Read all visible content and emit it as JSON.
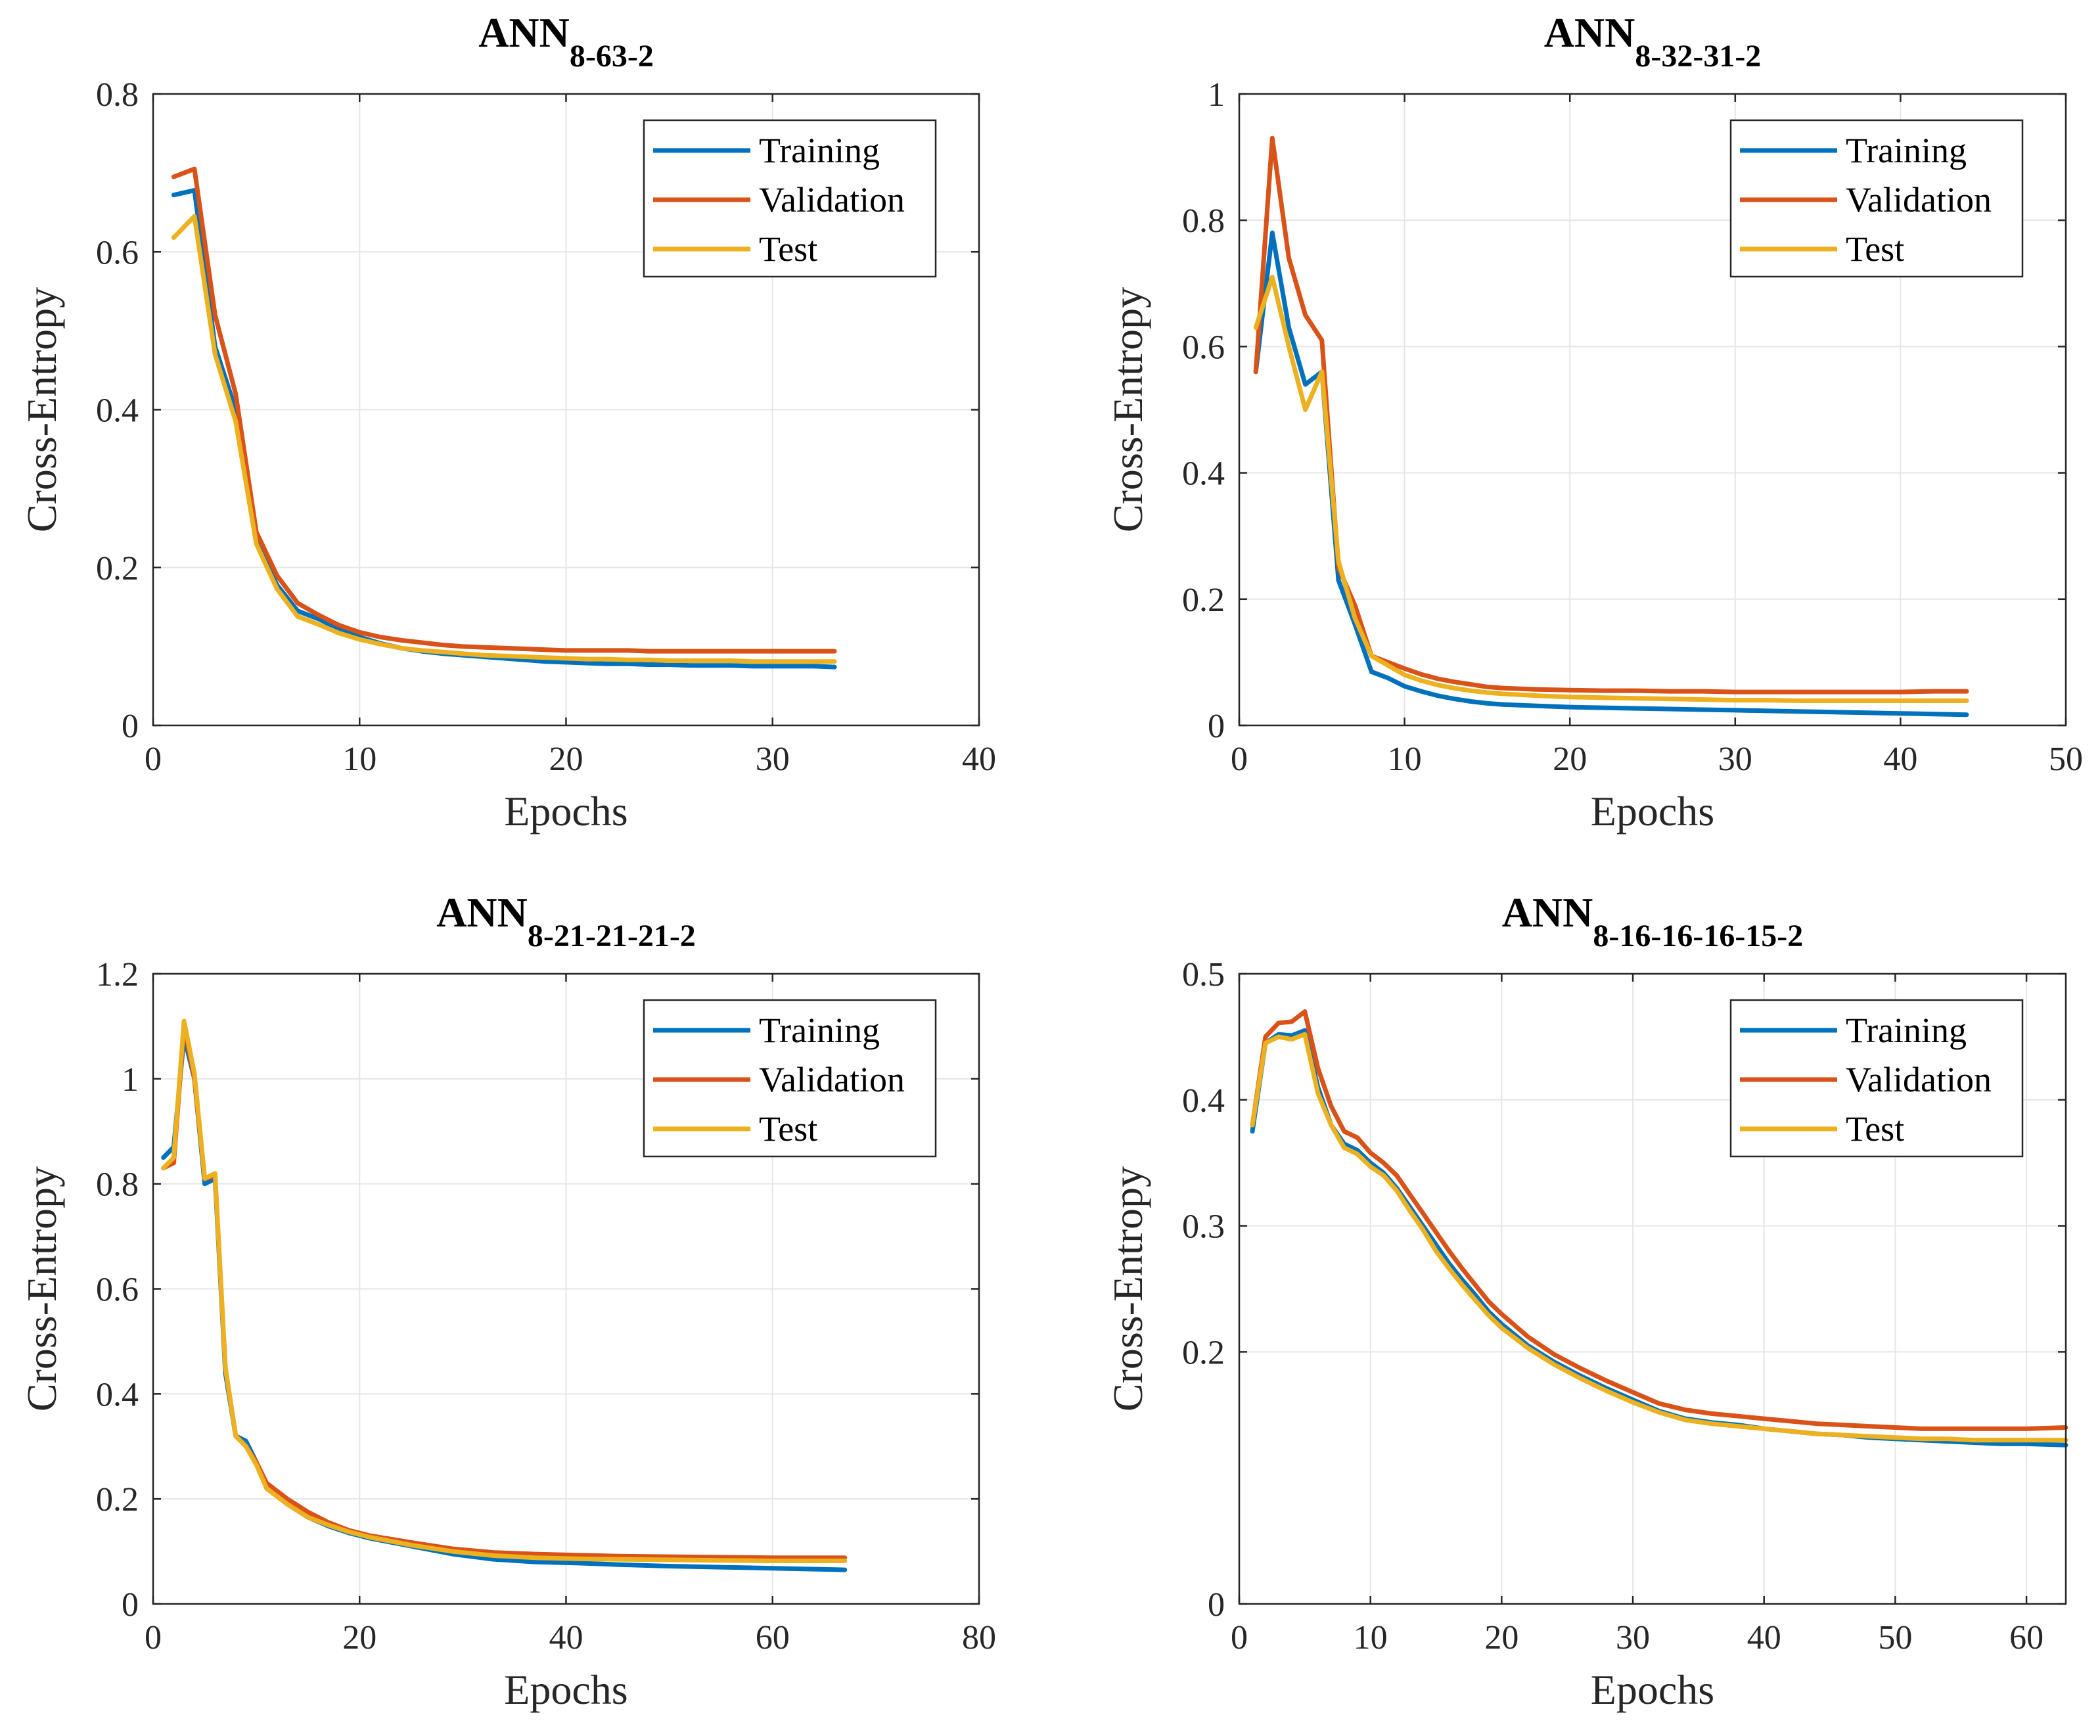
{
  "figure": {
    "description_label": "Cross-entropy training curves"
  },
  "colors": {
    "training": "#0072BD",
    "validation": "#D95319",
    "test": "#EDB120",
    "grid": "#e6e6e6",
    "axis": "#262626"
  },
  "chart_data": [
    {
      "type": "line",
      "title": "ANN",
      "title_sub": "8-63-2",
      "xlabel": "Epochs",
      "ylabel": "Cross-Entropy",
      "xlim": [
        0,
        40
      ],
      "ylim": [
        0,
        0.8
      ],
      "xticks": [
        0,
        10,
        20,
        30,
        40
      ],
      "xtick_labels": [
        "0",
        "10",
        "20",
        "30",
        "40"
      ],
      "yticks": [
        0,
        0.2,
        0.4,
        0.6,
        0.8
      ],
      "ytick_labels": [
        "0",
        "0.2",
        "0.4",
        "0.6",
        "0.8"
      ],
      "grid": true,
      "legend_position": "top-right",
      "series": [
        {
          "name": "Training",
          "color": "#0072BD",
          "x": [
            1,
            2,
            3,
            4,
            5,
            6,
            7,
            8,
            9,
            10,
            11,
            12,
            13,
            14,
            15,
            16,
            17,
            18,
            19,
            20,
            21,
            22,
            23,
            24,
            25,
            26,
            27,
            28,
            29,
            30,
            31,
            32,
            33
          ],
          "y": [
            0.672,
            0.678,
            0.48,
            0.4,
            0.235,
            0.178,
            0.145,
            0.135,
            0.122,
            0.112,
            0.104,
            0.098,
            0.094,
            0.091,
            0.089,
            0.087,
            0.085,
            0.083,
            0.081,
            0.08,
            0.079,
            0.078,
            0.078,
            0.077,
            0.077,
            0.076,
            0.076,
            0.076,
            0.075,
            0.075,
            0.075,
            0.075,
            0.074
          ]
        },
        {
          "name": "Validation",
          "color": "#D95319",
          "x": [
            1,
            2,
            3,
            4,
            5,
            6,
            7,
            8,
            9,
            10,
            11,
            12,
            13,
            14,
            15,
            16,
            17,
            18,
            19,
            20,
            21,
            22,
            23,
            24,
            25,
            26,
            27,
            28,
            29,
            30,
            31,
            32,
            33
          ],
          "y": [
            0.695,
            0.705,
            0.52,
            0.42,
            0.245,
            0.19,
            0.155,
            0.14,
            0.127,
            0.118,
            0.112,
            0.108,
            0.105,
            0.102,
            0.1,
            0.099,
            0.098,
            0.097,
            0.096,
            0.095,
            0.095,
            0.095,
            0.095,
            0.094,
            0.094,
            0.094,
            0.094,
            0.094,
            0.094,
            0.094,
            0.094,
            0.094,
            0.094
          ]
        },
        {
          "name": "Test",
          "color": "#EDB120",
          "x": [
            1,
            2,
            3,
            4,
            5,
            6,
            7,
            8,
            9,
            10,
            11,
            12,
            13,
            14,
            15,
            16,
            17,
            18,
            19,
            20,
            21,
            22,
            23,
            24,
            25,
            26,
            27,
            28,
            29,
            30,
            31,
            32,
            33
          ],
          "y": [
            0.618,
            0.645,
            0.47,
            0.385,
            0.23,
            0.173,
            0.138,
            0.128,
            0.117,
            0.109,
            0.103,
            0.098,
            0.095,
            0.093,
            0.091,
            0.089,
            0.088,
            0.087,
            0.086,
            0.085,
            0.084,
            0.084,
            0.083,
            0.083,
            0.082,
            0.082,
            0.082,
            0.082,
            0.081,
            0.081,
            0.081,
            0.081,
            0.081
          ]
        }
      ]
    },
    {
      "type": "line",
      "title": "ANN",
      "title_sub": "8-32-31-2",
      "xlabel": "Epochs",
      "ylabel": "Cross-Entropy",
      "xlim": [
        0,
        50
      ],
      "ylim": [
        0,
        1
      ],
      "xticks": [
        0,
        10,
        20,
        30,
        40,
        50
      ],
      "xtick_labels": [
        "0",
        "10",
        "20",
        "30",
        "40",
        "50"
      ],
      "yticks": [
        0,
        0.2,
        0.4,
        0.6,
        0.8,
        1
      ],
      "ytick_labels": [
        "0",
        "0.2",
        "0.4",
        "0.6",
        "0.8",
        "1"
      ],
      "grid": true,
      "legend_position": "top-right",
      "series": [
        {
          "name": "Training",
          "color": "#0072BD",
          "x": [
            1,
            2,
            3,
            4,
            5,
            6,
            7,
            8,
            9,
            10,
            11,
            12,
            13,
            14,
            15,
            16,
            18,
            20,
            22,
            24,
            26,
            28,
            30,
            32,
            34,
            36,
            38,
            40,
            42,
            44
          ],
          "y": [
            0.56,
            0.78,
            0.63,
            0.54,
            0.56,
            0.23,
            0.16,
            0.085,
            0.075,
            0.062,
            0.054,
            0.047,
            0.042,
            0.038,
            0.035,
            0.033,
            0.031,
            0.029,
            0.028,
            0.027,
            0.026,
            0.025,
            0.024,
            0.023,
            0.022,
            0.021,
            0.02,
            0.019,
            0.018,
            0.017
          ]
        },
        {
          "name": "Validation",
          "color": "#D95319",
          "x": [
            1,
            2,
            3,
            4,
            5,
            6,
            7,
            8,
            9,
            10,
            11,
            12,
            13,
            14,
            15,
            16,
            18,
            20,
            22,
            24,
            26,
            28,
            30,
            32,
            34,
            36,
            38,
            40,
            42,
            44
          ],
          "y": [
            0.56,
            0.93,
            0.74,
            0.65,
            0.61,
            0.25,
            0.19,
            0.11,
            0.1,
            0.09,
            0.081,
            0.074,
            0.069,
            0.065,
            0.061,
            0.059,
            0.057,
            0.056,
            0.055,
            0.055,
            0.054,
            0.054,
            0.053,
            0.053,
            0.053,
            0.053,
            0.053,
            0.053,
            0.054,
            0.054
          ]
        },
        {
          "name": "Test",
          "color": "#EDB120",
          "x": [
            1,
            2,
            3,
            4,
            5,
            6,
            7,
            8,
            9,
            10,
            11,
            12,
            13,
            14,
            15,
            16,
            18,
            20,
            22,
            24,
            26,
            28,
            30,
            32,
            34,
            36,
            38,
            40,
            42,
            44
          ],
          "y": [
            0.63,
            0.71,
            0.6,
            0.5,
            0.56,
            0.26,
            0.17,
            0.11,
            0.095,
            0.08,
            0.071,
            0.064,
            0.059,
            0.055,
            0.052,
            0.05,
            0.047,
            0.045,
            0.044,
            0.043,
            0.042,
            0.041,
            0.04,
            0.04,
            0.039,
            0.039,
            0.039,
            0.039,
            0.039,
            0.039
          ]
        }
      ]
    },
    {
      "type": "line",
      "title": "ANN",
      "title_sub": "8-21-21-21-2",
      "xlabel": "Epochs",
      "ylabel": "Cross-Entropy",
      "xlim": [
        0,
        80
      ],
      "ylim": [
        0,
        1.2
      ],
      "xticks": [
        0,
        20,
        40,
        60,
        80
      ],
      "xtick_labels": [
        "0",
        "20",
        "40",
        "60",
        "80"
      ],
      "yticks": [
        0,
        0.2,
        0.4,
        0.6,
        0.8,
        1,
        1.2
      ],
      "ytick_labels": [
        "0",
        "0.2",
        "0.4",
        "0.6",
        "0.8",
        "1",
        "1.2"
      ],
      "grid": true,
      "legend_position": "top-right",
      "series": [
        {
          "name": "Training",
          "color": "#0072BD",
          "x": [
            1,
            2,
            3,
            4,
            5,
            6,
            7,
            8,
            9,
            10,
            11,
            13,
            15,
            17,
            19,
            21,
            25,
            29,
            33,
            37,
            41,
            45,
            50,
            55,
            60,
            67
          ],
          "y": [
            0.85,
            0.87,
            1.08,
            1.0,
            0.8,
            0.81,
            0.44,
            0.32,
            0.31,
            0.27,
            0.22,
            0.19,
            0.165,
            0.148,
            0.135,
            0.125,
            0.11,
            0.095,
            0.085,
            0.08,
            0.078,
            0.075,
            0.072,
            0.07,
            0.068,
            0.065
          ]
        },
        {
          "name": "Validation",
          "color": "#D95319",
          "x": [
            1,
            2,
            3,
            4,
            5,
            6,
            7,
            8,
            9,
            10,
            11,
            13,
            15,
            17,
            19,
            21,
            25,
            29,
            33,
            37,
            41,
            45,
            50,
            55,
            60,
            67
          ],
          "y": [
            0.83,
            0.84,
            1.1,
            1.0,
            0.81,
            0.815,
            0.45,
            0.32,
            0.3,
            0.27,
            0.23,
            0.2,
            0.175,
            0.155,
            0.14,
            0.13,
            0.117,
            0.105,
            0.098,
            0.095,
            0.093,
            0.091,
            0.09,
            0.089,
            0.088,
            0.088
          ]
        },
        {
          "name": "Test",
          "color": "#EDB120",
          "x": [
            1,
            2,
            3,
            4,
            5,
            6,
            7,
            8,
            9,
            10,
            11,
            13,
            15,
            17,
            19,
            21,
            25,
            29,
            33,
            37,
            41,
            45,
            50,
            55,
            60,
            67
          ],
          "y": [
            0.83,
            0.85,
            1.11,
            1.01,
            0.81,
            0.82,
            0.45,
            0.32,
            0.3,
            0.265,
            0.22,
            0.19,
            0.165,
            0.15,
            0.137,
            0.127,
            0.112,
            0.1,
            0.092,
            0.088,
            0.086,
            0.085,
            0.084,
            0.083,
            0.082,
            0.082
          ]
        }
      ]
    },
    {
      "type": "line",
      "title": "ANN",
      "title_sub": "8-16-16-16-15-2",
      "xlabel": "Epochs",
      "ylabel": "Cross-Entropy",
      "xlim": [
        0,
        63
      ],
      "ylim": [
        0,
        0.5
      ],
      "xticks": [
        0,
        10,
        20,
        30,
        40,
        50,
        60
      ],
      "xtick_labels": [
        "0",
        "10",
        "20",
        "30",
        "40",
        "50",
        "60"
      ],
      "yticks": [
        0,
        0.2,
        0.3,
        0.4,
        0.5
      ],
      "ytick_labels": [
        "0",
        "0.2",
        "0.3",
        "0.4",
        "0.5"
      ],
      "grid": true,
      "legend_position": "top-right",
      "series": [
        {
          "name": "Training",
          "color": "#0072BD",
          "x": [
            1,
            2,
            3,
            4,
            5,
            6,
            7,
            8,
            9,
            10,
            11,
            12,
            13,
            14,
            15,
            16,
            17,
            18,
            19,
            20,
            22,
            24,
            26,
            28,
            30,
            32,
            34,
            36,
            38,
            40,
            42,
            44,
            46,
            48,
            50,
            52,
            54,
            56,
            58,
            60,
            63
          ],
          "y": [
            0.375,
            0.445,
            0.452,
            0.451,
            0.455,
            0.41,
            0.38,
            0.365,
            0.36,
            0.35,
            0.342,
            0.33,
            0.315,
            0.3,
            0.285,
            0.27,
            0.257,
            0.245,
            0.232,
            0.222,
            0.205,
            0.192,
            0.181,
            0.171,
            0.162,
            0.153,
            0.147,
            0.144,
            0.142,
            0.139,
            0.137,
            0.135,
            0.134,
            0.132,
            0.131,
            0.13,
            0.129,
            0.128,
            0.127,
            0.127,
            0.126
          ]
        },
        {
          "name": "Validation",
          "color": "#D95319",
          "x": [
            1,
            2,
            3,
            4,
            5,
            6,
            7,
            8,
            9,
            10,
            11,
            12,
            13,
            14,
            15,
            16,
            17,
            18,
            19,
            20,
            22,
            24,
            26,
            28,
            30,
            32,
            34,
            36,
            38,
            40,
            42,
            44,
            46,
            48,
            50,
            52,
            54,
            56,
            58,
            60,
            63
          ],
          "y": [
            0.38,
            0.45,
            0.461,
            0.462,
            0.47,
            0.425,
            0.395,
            0.375,
            0.37,
            0.358,
            0.35,
            0.34,
            0.325,
            0.31,
            0.295,
            0.28,
            0.266,
            0.253,
            0.24,
            0.23,
            0.212,
            0.198,
            0.187,
            0.177,
            0.168,
            0.159,
            0.154,
            0.151,
            0.149,
            0.147,
            0.145,
            0.143,
            0.142,
            0.141,
            0.14,
            0.139,
            0.139,
            0.139,
            0.139,
            0.139,
            0.14
          ]
        },
        {
          "name": "Test",
          "color": "#EDB120",
          "x": [
            1,
            2,
            3,
            4,
            5,
            6,
            7,
            8,
            9,
            10,
            11,
            12,
            13,
            14,
            15,
            16,
            17,
            18,
            19,
            20,
            22,
            24,
            26,
            28,
            30,
            32,
            34,
            36,
            38,
            40,
            42,
            44,
            46,
            48,
            50,
            52,
            54,
            56,
            58,
            60,
            63
          ],
          "y": [
            0.38,
            0.445,
            0.45,
            0.448,
            0.452,
            0.405,
            0.38,
            0.362,
            0.357,
            0.347,
            0.34,
            0.328,
            0.312,
            0.297,
            0.28,
            0.266,
            0.253,
            0.241,
            0.229,
            0.219,
            0.203,
            0.19,
            0.179,
            0.169,
            0.16,
            0.152,
            0.146,
            0.143,
            0.141,
            0.139,
            0.137,
            0.135,
            0.134,
            0.133,
            0.132,
            0.131,
            0.131,
            0.13,
            0.13,
            0.13,
            0.13
          ]
        }
      ]
    }
  ]
}
